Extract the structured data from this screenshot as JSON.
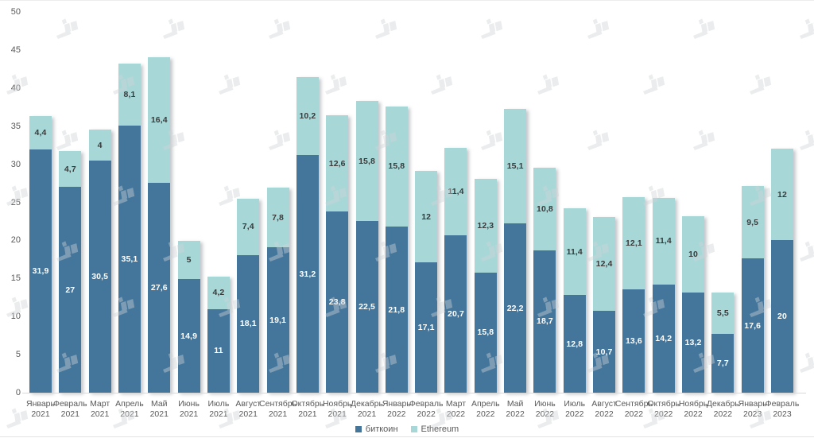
{
  "chart_data": {
    "type": "bar",
    "stacked": true,
    "title": "",
    "xlabel": "",
    "ylabel": "",
    "ylim": [
      0,
      50
    ],
    "yticks": [
      0,
      5,
      10,
      15,
      20,
      25,
      30,
      35,
      40,
      45,
      50
    ],
    "grid": false,
    "legend_position": "bottom",
    "decimal_separator": ",",
    "categories": [
      {
        "month": "Январь",
        "year": "2021"
      },
      {
        "month": "Февраль",
        "year": "2021"
      },
      {
        "month": "Март",
        "year": "2021"
      },
      {
        "month": "Апрель",
        "year": "2021"
      },
      {
        "month": "Май",
        "year": "2021"
      },
      {
        "month": "Июнь",
        "year": "2021"
      },
      {
        "month": "Июль",
        "year": "2021"
      },
      {
        "month": "Август",
        "year": "2021"
      },
      {
        "month": "Сентябрь",
        "year": "2021"
      },
      {
        "month": "Октябрь",
        "year": "2021"
      },
      {
        "month": "Ноябрь",
        "year": "2021"
      },
      {
        "month": "Декабрь",
        "year": "2021"
      },
      {
        "month": "Январь",
        "year": "2022"
      },
      {
        "month": "Февраль",
        "year": "2022"
      },
      {
        "month": "Март",
        "year": "2022"
      },
      {
        "month": "Апрель",
        "year": "2022"
      },
      {
        "month": "Май",
        "year": "2022"
      },
      {
        "month": "Июнь",
        "year": "2022"
      },
      {
        "month": "Июль",
        "year": "2022"
      },
      {
        "month": "Август",
        "year": "2022"
      },
      {
        "month": "Сентябрь",
        "year": "2022"
      },
      {
        "month": "Октябрь",
        "year": "2022"
      },
      {
        "month": "Ноябрь",
        "year": "2022"
      },
      {
        "month": "Декабрь",
        "year": "2022"
      },
      {
        "month": "Январь",
        "year": "2023"
      },
      {
        "month": "Февраль",
        "year": "2023"
      }
    ],
    "series": [
      {
        "name": "биткоин",
        "color": "#44769c",
        "label_color": "#ffffff",
        "values": [
          31.9,
          27,
          30.5,
          35.1,
          27.6,
          14.9,
          11,
          18.1,
          19.1,
          31.2,
          23.8,
          22.5,
          21.8,
          17.1,
          20.7,
          15.8,
          22.2,
          18.7,
          12.8,
          10.7,
          13.6,
          14.2,
          13.2,
          7.7,
          17.6,
          20
        ]
      },
      {
        "name": "Ethereum",
        "color": "#a8d7d8",
        "label_color": "#3a3a3a",
        "values": [
          4.4,
          4.7,
          4,
          8.1,
          16.4,
          5,
          4.2,
          7.4,
          7.8,
          10.2,
          12.6,
          15.8,
          15.8,
          12,
          11.4,
          12.3,
          15.1,
          10.8,
          11.4,
          12.4,
          12.1,
          11.4,
          10,
          5.5,
          9.5,
          12
        ]
      }
    ]
  },
  "axis": {
    "tick_color": "#595959",
    "line_color": "#d9d9d9"
  },
  "watermark": {
    "name": "forklog-logo",
    "color": "#cfd4d6"
  }
}
